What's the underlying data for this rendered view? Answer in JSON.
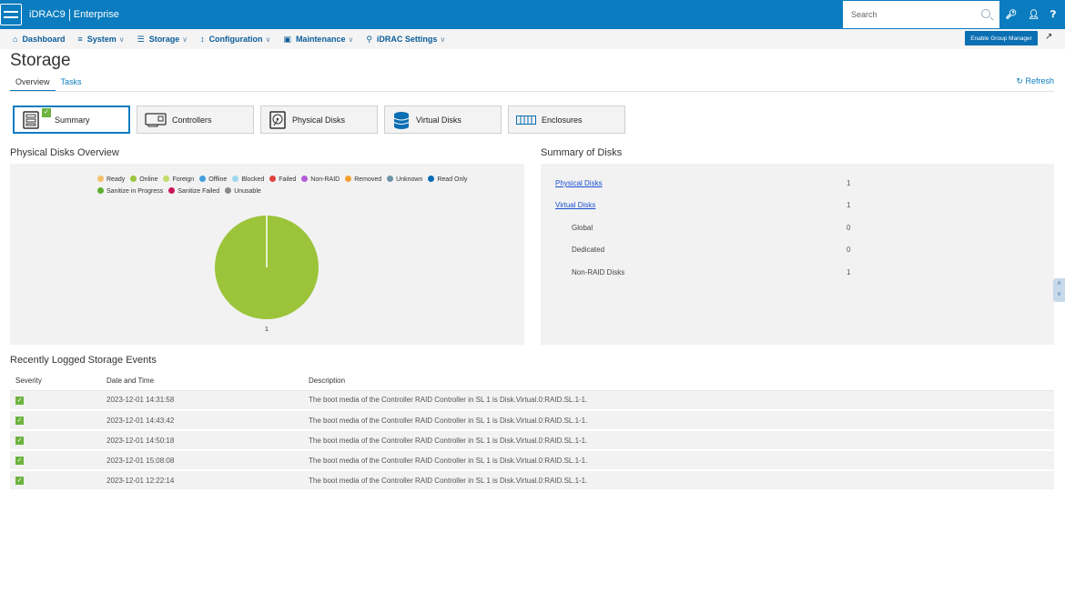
{
  "header": {
    "product": "iDRAC9",
    "edition": "Enterprise",
    "search_placeholder": "Search",
    "icons": [
      "key-icon",
      "user-icon",
      "help-icon"
    ]
  },
  "nav": {
    "items": [
      {
        "label": "Dashboard",
        "icon": "home-icon",
        "has_menu": false
      },
      {
        "label": "System",
        "icon": "server-icon",
        "has_menu": true
      },
      {
        "label": "Storage",
        "icon": "database-icon",
        "has_menu": true
      },
      {
        "label": "Configuration",
        "icon": "sliders-icon",
        "has_menu": true
      },
      {
        "label": "Maintenance",
        "icon": "wrench-icon",
        "has_menu": true
      },
      {
        "label": "iDRAC Settings",
        "icon": "settings-icon",
        "has_menu": true
      }
    ],
    "group_manager_label": "Enable Group Manager"
  },
  "page": {
    "title": "Storage",
    "tabs": [
      {
        "label": "Overview",
        "active": true
      },
      {
        "label": "Tasks",
        "active": false
      }
    ],
    "refresh_label": "Refresh"
  },
  "tiles": [
    {
      "label": "Summary",
      "active": true,
      "icon": "summary-icon"
    },
    {
      "label": "Controllers",
      "active": false,
      "icon": "controller-icon"
    },
    {
      "label": "Physical Disks",
      "active": false,
      "icon": "physical-disk-icon"
    },
    {
      "label": "Virtual Disks",
      "active": false,
      "icon": "virtual-disk-icon"
    },
    {
      "label": "Enclosures",
      "active": false,
      "icon": "enclosure-icon"
    }
  ],
  "overview": {
    "title": "Physical Disks Overview",
    "legend_row1": [
      {
        "label": "Ready",
        "color": "#f5c16c"
      },
      {
        "label": "Online",
        "color": "#9bc43a"
      },
      {
        "label": "Foreign",
        "color": "#c4dc6a"
      },
      {
        "label": "Offline",
        "color": "#42a1dc"
      },
      {
        "label": "Blocked",
        "color": "#9fd6ef"
      },
      {
        "label": "Failed",
        "color": "#e0413b"
      },
      {
        "label": "Non-RAID",
        "color": "#b65bd8"
      },
      {
        "label": "Removed",
        "color": "#f2a131"
      },
      {
        "label": "Unknown",
        "color": "#6c94a8"
      },
      {
        "label": "Read Only",
        "color": "#0b6bb5"
      }
    ],
    "legend_row2": [
      {
        "label": "Sanitize in Progress",
        "color": "#5fae2f"
      },
      {
        "label": "Sanitize Failed",
        "color": "#c8185a"
      },
      {
        "label": "Unusable",
        "color": "#8a8a8a"
      }
    ]
  },
  "chart_data": {
    "type": "pie",
    "categories": [
      "Online"
    ],
    "values": [
      1
    ],
    "colors": [
      "#9bc43a"
    ],
    "data_labels": [
      "1"
    ]
  },
  "summary": {
    "title": "Summary of Disks",
    "rows": [
      {
        "label": "Physical Disks",
        "value": "1",
        "link": true
      },
      {
        "label": "Virtual Disks",
        "value": "1",
        "link": true
      },
      {
        "label": "Global",
        "value": "0",
        "link": false
      },
      {
        "label": "Dedicated",
        "value": "0",
        "link": false
      },
      {
        "label": "Non-RAID Disks",
        "value": "1",
        "link": false
      }
    ]
  },
  "events": {
    "title": "Recently Logged Storage Events",
    "columns": [
      "Severity",
      "Date and Time",
      "Description"
    ],
    "rows": [
      {
        "datetime": "2023-12-01 14:31:58",
        "description": "The boot media of the Controller RAID Controller in SL 1 is Disk.Virtual.0:RAID.SL.1-1."
      },
      {
        "datetime": "2023-12-01 14:43:42",
        "description": "The boot media of the Controller RAID Controller in SL 1 is Disk.Virtual.0:RAID.SL.1-1."
      },
      {
        "datetime": "2023-12-01 14:50:18",
        "description": "The boot media of the Controller RAID Controller in SL 1 is Disk.Virtual.0:RAID.SL.1-1."
      },
      {
        "datetime": "2023-12-01 15:08:08",
        "description": "The boot media of the Controller RAID Controller in SL 1 is Disk.Virtual.0:RAID.SL.1-1."
      },
      {
        "datetime": "2023-12-01 12:22:14",
        "description": "The boot media of the Controller RAID Controller in SL 1 is Disk.Virtual.0:RAID.SL.1-1."
      }
    ]
  }
}
